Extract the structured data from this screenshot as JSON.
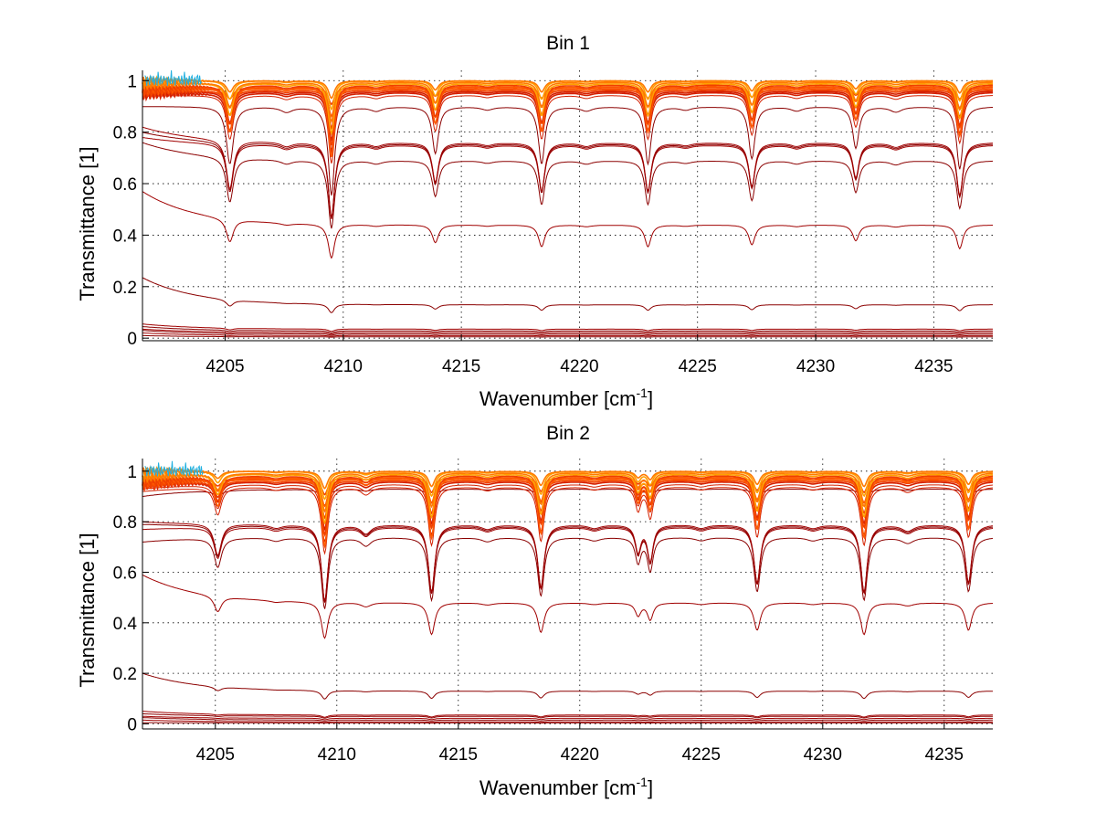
{
  "figure": {
    "background": "#ffffff"
  },
  "chart_data": [
    {
      "type": "line",
      "title": "Bin 1",
      "xlabel": "Wavenumber [cm",
      "xlabel_sup": "-1",
      "xlabel_end": "]",
      "ylabel": "Transmittance [1]",
      "xlim": [
        4201.5,
        4237.5
      ],
      "ylim": [
        -0.01,
        1.04
      ],
      "xticks": [
        4205,
        4210,
        4215,
        4220,
        4225,
        4230,
        4235
      ],
      "xtick_labels": [
        "4205",
        "4210",
        "4215",
        "4220",
        "4225",
        "4230",
        "4235"
      ],
      "yticks": [
        0,
        0.2,
        0.4,
        0.6,
        0.8,
        1
      ],
      "ytick_labels": [
        "0",
        "0.2",
        "0.4",
        "0.6",
        "0.8",
        "1"
      ],
      "grid": true,
      "line_colors": [
        "#8b0000",
        "#a00000",
        "#b20000",
        "#c41000",
        "#d42000",
        "#e43000",
        "#f04000",
        "#ff5a00",
        "#ff7a00",
        "#ffa000",
        "#20b0e0"
      ],
      "absorption_lines": [
        {
          "center": 4205.2,
          "depth": 0.55,
          "width": 0.18
        },
        {
          "center": 4209.5,
          "depth": 0.85,
          "width": 0.16
        },
        {
          "center": 4213.9,
          "depth": 0.45,
          "width": 0.16
        },
        {
          "center": 4218.4,
          "depth": 0.55,
          "width": 0.16
        },
        {
          "center": 4222.9,
          "depth": 0.55,
          "width": 0.16
        },
        {
          "center": 4227.3,
          "depth": 0.5,
          "width": 0.16
        },
        {
          "center": 4231.7,
          "depth": 0.4,
          "width": 0.16
        },
        {
          "center": 4236.1,
          "depth": 0.6,
          "width": 0.16
        }
      ],
      "weak_lines": [
        {
          "center": 4207.6,
          "depth": 0.05,
          "width": 0.3
        },
        {
          "center": 4211.4,
          "depth": 0.04,
          "width": 0.3
        },
        {
          "center": 4216.1,
          "depth": 0.03,
          "width": 0.3
        },
        {
          "center": 4220.3,
          "depth": 0.04,
          "width": 0.3
        },
        {
          "center": 4224.5,
          "depth": 0.03,
          "width": 0.3
        },
        {
          "center": 4229.2,
          "depth": 0.04,
          "width": 0.3
        },
        {
          "center": 4233.4,
          "depth": 0.05,
          "width": 0.3
        }
      ],
      "series_baselines": [
        1.0,
        1.0,
        0.995,
        0.99,
        0.985,
        0.98,
        0.975,
        0.97,
        0.965,
        0.96,
        0.955,
        0.945,
        0.9,
        0.76,
        0.755,
        0.75,
        0.69,
        0.44,
        0.13,
        0.035,
        0.028,
        0.022,
        0.016,
        0.01,
        0.005
      ],
      "series_start_values": [
        1.0,
        1.0,
        0.98,
        0.99,
        0.97,
        0.97,
        0.96,
        0.96,
        0.95,
        0.95,
        0.94,
        0.94,
        0.9,
        0.82,
        0.8,
        0.78,
        0.76,
        0.57,
        0.235,
        0.055,
        0.045,
        0.035,
        0.03,
        0.02,
        0.01
      ]
    },
    {
      "type": "line",
      "title": "Bin 2",
      "xlabel": "Wavenumber [cm",
      "xlabel_sup": "-1",
      "xlabel_end": "]",
      "ylabel": "Transmittance [1]",
      "xlim": [
        4202.0,
        4237.0
      ],
      "ylim": [
        -0.02,
        1.05
      ],
      "xticks": [
        4205,
        4210,
        4215,
        4220,
        4225,
        4230,
        4235
      ],
      "xtick_labels": [
        "4205",
        "4210",
        "4215",
        "4220",
        "4225",
        "4230",
        "4235"
      ],
      "yticks": [
        0,
        0.2,
        0.4,
        0.6,
        0.8,
        1
      ],
      "ytick_labels": [
        "0",
        "0.2",
        "0.4",
        "0.6",
        "0.8",
        "1"
      ],
      "grid": true,
      "line_colors": [
        "#8b0000",
        "#a00000",
        "#b20000",
        "#c41000",
        "#d42000",
        "#e43000",
        "#f04000",
        "#ff5a00",
        "#ff7a00",
        "#ffa000",
        "#20b0e0"
      ],
      "absorption_lines": [
        {
          "center": 4205.1,
          "depth": 0.35,
          "width": 0.18
        },
        {
          "center": 4209.5,
          "depth": 0.85,
          "width": 0.16
        },
        {
          "center": 4213.9,
          "depth": 0.75,
          "width": 0.16
        },
        {
          "center": 4218.4,
          "depth": 0.7,
          "width": 0.16
        },
        {
          "center": 4222.4,
          "depth": 0.3,
          "width": 0.14
        },
        {
          "center": 4222.9,
          "depth": 0.4,
          "width": 0.14
        },
        {
          "center": 4227.3,
          "depth": 0.65,
          "width": 0.16
        },
        {
          "center": 4231.7,
          "depth": 0.75,
          "width": 0.16
        },
        {
          "center": 4236.0,
          "depth": 0.65,
          "width": 0.16
        }
      ],
      "weak_lines": [
        {
          "center": 4207.5,
          "depth": 0.04,
          "width": 0.3
        },
        {
          "center": 4211.2,
          "depth": 0.1,
          "width": 0.25
        },
        {
          "center": 4216.2,
          "depth": 0.05,
          "width": 0.3
        },
        {
          "center": 4220.6,
          "depth": 0.04,
          "width": 0.3
        },
        {
          "center": 4225.0,
          "depth": 0.04,
          "width": 0.3
        },
        {
          "center": 4229.6,
          "depth": 0.04,
          "width": 0.3
        },
        {
          "center": 4233.5,
          "depth": 0.07,
          "width": 0.3
        }
      ],
      "series_baselines": [
        1.0,
        1.0,
        0.995,
        0.99,
        0.985,
        0.98,
        0.975,
        0.97,
        0.965,
        0.96,
        0.95,
        0.94,
        0.93,
        0.79,
        0.785,
        0.78,
        0.74,
        0.48,
        0.13,
        0.035,
        0.03,
        0.022,
        0.015,
        0.008,
        0.004
      ],
      "series_start_values": [
        1.0,
        1.0,
        0.97,
        0.98,
        0.96,
        0.96,
        0.95,
        0.95,
        0.94,
        0.94,
        0.93,
        0.92,
        0.9,
        0.8,
        0.79,
        0.77,
        0.72,
        0.59,
        0.2,
        0.05,
        0.04,
        0.03,
        0.025,
        0.015,
        0.005
      ]
    }
  ]
}
